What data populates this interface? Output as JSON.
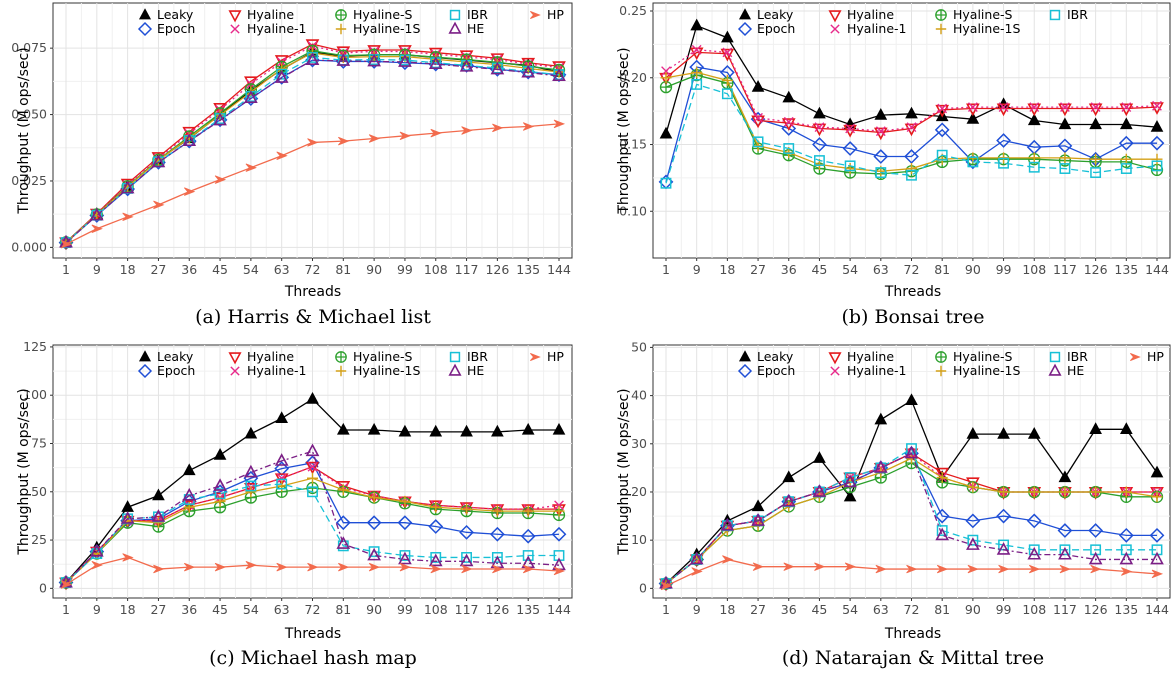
{
  "chart_data": [
    {
      "type": "line",
      "caption": "(a) Harris & Michael list",
      "xlabel": "Threads",
      "ylabel": "Throughput (M ops/sec)",
      "categories": [
        "1",
        "9",
        "18",
        "27",
        "36",
        "45",
        "54",
        "63",
        "72",
        "81",
        "90",
        "99",
        "108",
        "117",
        "126",
        "135",
        "144"
      ],
      "yticks": [
        "0.000",
        "0.025",
        "0.050",
        "0.075"
      ],
      "ylim": [
        -0.004,
        0.092
      ],
      "grid": true,
      "legend": "top",
      "series": [
        {
          "name": "Leaky",
          "values": [
            0.002,
            0.0125,
            0.023,
            0.033,
            0.041,
            0.05,
            0.059,
            0.067,
            0.0735,
            0.072,
            0.0725,
            0.0725,
            0.0715,
            0.0705,
            0.0695,
            0.0685,
            0.066
          ]
        },
        {
          "name": "Epoch",
          "values": [
            0.0018,
            0.012,
            0.022,
            0.032,
            0.04,
            0.048,
            0.056,
            0.064,
            0.0705,
            0.07,
            0.07,
            0.0695,
            0.069,
            0.0685,
            0.067,
            0.066,
            0.065
          ]
        },
        {
          "name": "Hyaline",
          "values": [
            0.0019,
            0.0127,
            0.024,
            0.034,
            0.0435,
            0.0525,
            0.0625,
            0.0705,
            0.0765,
            0.0738,
            0.0743,
            0.0743,
            0.0733,
            0.0723,
            0.0712,
            0.0695,
            0.0682
          ]
        },
        {
          "name": "Hyaline-1",
          "values": [
            0.0019,
            0.0126,
            0.0235,
            0.0335,
            0.0428,
            0.0518,
            0.0615,
            0.0698,
            0.0758,
            0.0732,
            0.0738,
            0.0737,
            0.0727,
            0.0717,
            0.0707,
            0.069,
            0.0677
          ]
        },
        {
          "name": "Hyaline-S",
          "values": [
            0.0019,
            0.0124,
            0.023,
            0.033,
            0.0418,
            0.0505,
            0.0595,
            0.068,
            0.074,
            0.0722,
            0.0725,
            0.0725,
            0.0716,
            0.0707,
            0.0697,
            0.0682,
            0.0668
          ]
        },
        {
          "name": "Hyaline-1S",
          "values": [
            0.0019,
            0.0123,
            0.0228,
            0.0328,
            0.0412,
            0.0498,
            0.0585,
            0.0672,
            0.0732,
            0.0715,
            0.0718,
            0.0718,
            0.0708,
            0.0698,
            0.0688,
            0.0674,
            0.066
          ]
        },
        {
          "name": "IBR",
          "values": [
            0.0018,
            0.0121,
            0.0222,
            0.0322,
            0.0402,
            0.0485,
            0.0568,
            0.0652,
            0.0715,
            0.0705,
            0.0707,
            0.0705,
            0.0695,
            0.0685,
            0.0675,
            0.0662,
            0.065
          ]
        },
        {
          "name": "HE",
          "values": [
            0.0018,
            0.012,
            0.0222,
            0.032,
            0.04,
            0.0478,
            0.0562,
            0.0638,
            0.0705,
            0.0702,
            0.07,
            0.0698,
            0.069,
            0.068,
            0.067,
            0.0658,
            0.0645
          ]
        },
        {
          "name": "HP",
          "values": [
            0.0012,
            0.007,
            0.0115,
            0.016,
            0.021,
            0.0255,
            0.03,
            0.0345,
            0.0395,
            0.04,
            0.041,
            0.042,
            0.043,
            0.044,
            0.045,
            0.0455,
            0.0465
          ]
        }
      ]
    },
    {
      "type": "line",
      "caption": "(b) Bonsai tree",
      "xlabel": "Threads",
      "ylabel": "Throughput (M ops/sec)",
      "categories": [
        "1",
        "9",
        "18",
        "27",
        "36",
        "45",
        "54",
        "63",
        "72",
        "81",
        "90",
        "99",
        "108",
        "117",
        "126",
        "135",
        "144"
      ],
      "yticks": [
        "0.10",
        "0.15",
        "0.20",
        "0.25"
      ],
      "ylim": [
        0.065,
        0.256
      ],
      "grid": true,
      "legend": "top",
      "series": [
        {
          "name": "Leaky",
          "values": [
            0.158,
            0.239,
            0.23,
            0.193,
            0.185,
            0.173,
            0.165,
            0.172,
            0.173,
            0.171,
            0.169,
            0.18,
            0.168,
            0.165,
            0.165,
            0.165,
            0.163
          ]
        },
        {
          "name": "Epoch",
          "values": [
            0.122,
            0.208,
            0.204,
            0.169,
            0.162,
            0.15,
            0.147,
            0.141,
            0.141,
            0.161,
            0.137,
            0.153,
            0.148,
            0.149,
            0.139,
            0.151,
            0.151
          ]
        },
        {
          "name": "Hyaline",
          "values": [
            0.2,
            0.219,
            0.218,
            0.168,
            0.166,
            0.162,
            0.161,
            0.159,
            0.162,
            0.176,
            0.177,
            0.177,
            0.177,
            0.177,
            0.177,
            0.177,
            0.178
          ]
        },
        {
          "name": "Hyaline-1",
          "values": [
            0.205,
            0.221,
            0.219,
            0.17,
            0.167,
            0.163,
            0.162,
            0.16,
            0.163,
            0.177,
            0.178,
            0.178,
            0.178,
            0.178,
            0.178,
            0.178,
            0.179
          ]
        },
        {
          "name": "Hyaline-S",
          "values": [
            0.193,
            0.202,
            0.196,
            0.147,
            0.142,
            0.132,
            0.129,
            0.128,
            0.13,
            0.137,
            0.139,
            0.139,
            0.139,
            0.138,
            0.137,
            0.137,
            0.131
          ]
        },
        {
          "name": "Hyaline-1S",
          "values": [
            0.2,
            0.204,
            0.198,
            0.149,
            0.144,
            0.135,
            0.132,
            0.13,
            0.132,
            0.139,
            0.14,
            0.14,
            0.14,
            0.14,
            0.139,
            0.139,
            0.139
          ]
        },
        {
          "name": "IBR",
          "values": [
            0.121,
            0.195,
            0.188,
            0.152,
            0.147,
            0.138,
            0.134,
            0.129,
            0.127,
            0.142,
            0.137,
            0.136,
            0.133,
            0.132,
            0.129,
            0.132,
            0.134
          ]
        }
      ]
    },
    {
      "type": "line",
      "caption": "(c) Michael hash map",
      "xlabel": "Threads",
      "ylabel": "Throughput (M ops/sec)",
      "categories": [
        "1",
        "9",
        "18",
        "27",
        "36",
        "45",
        "54",
        "63",
        "72",
        "81",
        "90",
        "99",
        "108",
        "117",
        "126",
        "135",
        "144"
      ],
      "yticks": [
        "0",
        "25",
        "50",
        "75",
        "100",
        "125"
      ],
      "ylim": [
        -5,
        126
      ],
      "grid": true,
      "legend": "top",
      "series": [
        {
          "name": "Leaky",
          "values": [
            3,
            21,
            42,
            48,
            61,
            69,
            80,
            88,
            98,
            82,
            82,
            81,
            81,
            81,
            81,
            82,
            82
          ]
        },
        {
          "name": "Epoch",
          "values": [
            3,
            19,
            35,
            36,
            45,
            50,
            57,
            62,
            65,
            34,
            34,
            34,
            32,
            29,
            28,
            27,
            28
          ]
        },
        {
          "name": "Hyaline",
          "values": [
            3,
            19,
            35,
            35,
            43,
            47,
            52,
            57,
            63,
            53,
            48,
            45,
            43,
            42,
            41,
            41,
            41
          ]
        },
        {
          "name": "Hyaline-1",
          "values": [
            3,
            19,
            35,
            35,
            43,
            47,
            52,
            57,
            63,
            52,
            48,
            45,
            43,
            42,
            41,
            41,
            43
          ]
        },
        {
          "name": "Hyaline-S",
          "values": [
            3,
            18,
            34,
            32,
            40,
            42,
            47,
            50,
            52,
            50,
            47,
            44,
            41,
            40,
            39,
            39,
            38
          ]
        },
        {
          "name": "Hyaline-1S",
          "values": [
            3,
            18,
            35,
            34,
            42,
            45,
            50,
            53,
            57,
            51,
            47,
            45,
            42,
            41,
            40,
            40,
            40
          ]
        },
        {
          "name": "IBR",
          "values": [
            3,
            18,
            36,
            37,
            46,
            49,
            53,
            54,
            50,
            22,
            19,
            17,
            16,
            16,
            16,
            17,
            17
          ]
        },
        {
          "name": "HE",
          "values": [
            3,
            19,
            36,
            37,
            48,
            53,
            60,
            66,
            71,
            23,
            17,
            15,
            14,
            14,
            13,
            13,
            12
          ]
        },
        {
          "name": "HP",
          "values": [
            2,
            12,
            16,
            10,
            11,
            11,
            12,
            11,
            11,
            11,
            11,
            11,
            10,
            10,
            10,
            10,
            9
          ]
        }
      ]
    },
    {
      "type": "line",
      "caption": "(d) Natarajan & Mittal tree",
      "xlabel": "Threads",
      "ylabel": "Throughput (M ops/sec)",
      "categories": [
        "1",
        "9",
        "18",
        "27",
        "36",
        "45",
        "54",
        "63",
        "72",
        "81",
        "90",
        "99",
        "108",
        "117",
        "126",
        "135",
        "144"
      ],
      "yticks": [
        "0",
        "10",
        "20",
        "30",
        "40",
        "50"
      ],
      "ylim": [
        -2,
        50.5
      ],
      "grid": true,
      "legend": "top",
      "series": [
        {
          "name": "Leaky",
          "values": [
            1,
            7,
            14,
            17,
            23,
            27,
            19,
            35,
            39,
            23,
            32,
            32,
            32,
            23,
            33,
            33,
            24
          ]
        },
        {
          "name": "Epoch",
          "values": [
            1,
            6,
            13,
            14,
            18,
            20,
            22,
            25,
            28,
            15,
            14,
            15,
            14,
            12,
            12,
            11,
            11
          ]
        },
        {
          "name": "Hyaline",
          "values": [
            1,
            6,
            13,
            14,
            18,
            20,
            23,
            25,
            28,
            24,
            22,
            20,
            20,
            20,
            20,
            20,
            20
          ]
        },
        {
          "name": "Hyaline-1",
          "values": [
            1,
            6,
            13,
            14,
            18,
            20,
            23,
            25,
            28,
            23,
            21,
            20,
            20,
            20,
            20,
            20,
            20
          ]
        },
        {
          "name": "Hyaline-S",
          "values": [
            1,
            6,
            12,
            13,
            17,
            19,
            21,
            23,
            26,
            22,
            21,
            20,
            20,
            20,
            20,
            19,
            19
          ]
        },
        {
          "name": "Hyaline-1S",
          "values": [
            1,
            6,
            12,
            13,
            17,
            19,
            22,
            24,
            27,
            23,
            21,
            20,
            20,
            20,
            20,
            20,
            19
          ]
        },
        {
          "name": "IBR",
          "values": [
            1,
            6,
            13,
            14,
            18,
            20,
            23,
            25,
            29,
            12,
            10,
            9,
            8,
            8,
            8,
            8,
            8
          ]
        },
        {
          "name": "HE",
          "values": [
            1,
            6,
            13,
            14,
            18,
            20,
            22,
            25,
            28,
            11,
            9,
            8,
            7,
            7,
            6,
            6,
            6
          ]
        },
        {
          "name": "HP",
          "values": [
            0.5,
            3.5,
            6,
            4.5,
            4.5,
            4.5,
            4.5,
            4,
            4,
            4,
            4,
            4,
            4,
            4,
            4,
            3.5,
            3
          ]
        }
      ]
    }
  ],
  "series_styles": {
    "Leaky": {
      "color": "#000000",
      "marker": "triangle-filled-icon",
      "dash": ""
    },
    "Epoch": {
      "color": "#1f4fd6",
      "marker": "diamond-icon",
      "dash": ""
    },
    "Hyaline": {
      "color": "#e41a1c",
      "marker": "triangle-down-icon",
      "dash": ""
    },
    "Hyaline-1": {
      "color": "#e7298a",
      "marker": "cross-icon",
      "dash": "2,3"
    },
    "Hyaline-S": {
      "color": "#2ca02c",
      "marker": "circle-plus-icon",
      "dash": ""
    },
    "Hyaline-1S": {
      "color": "#d4a017",
      "marker": "plus-icon",
      "dash": ""
    },
    "IBR": {
      "color": "#17c0d6",
      "marker": "square-icon",
      "dash": "7,4"
    },
    "HE": {
      "color": "#7b1f86",
      "marker": "triangle-icon",
      "dash": "6,3,2,3"
    },
    "HP": {
      "color": "#f26b4d",
      "marker": "arrow-icon",
      "dash": ""
    }
  }
}
